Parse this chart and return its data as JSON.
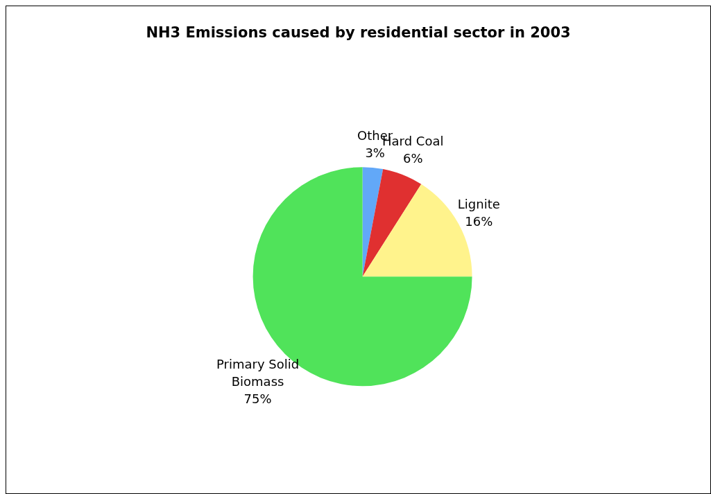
{
  "chart_data": {
    "type": "pie",
    "title": "NH3 Emissions caused by residential sector in 2003",
    "categories": [
      "Other",
      "Hard Coal",
      "Lignite",
      "Primary Solid Biomass"
    ],
    "values": [
      3,
      6,
      16,
      75
    ],
    "colors": [
      "#62a8f8",
      "#e03030",
      "#fff38c",
      "#50e35a"
    ],
    "value_labels": [
      "3%",
      "6%",
      "16%",
      "75%"
    ],
    "legend": false
  }
}
